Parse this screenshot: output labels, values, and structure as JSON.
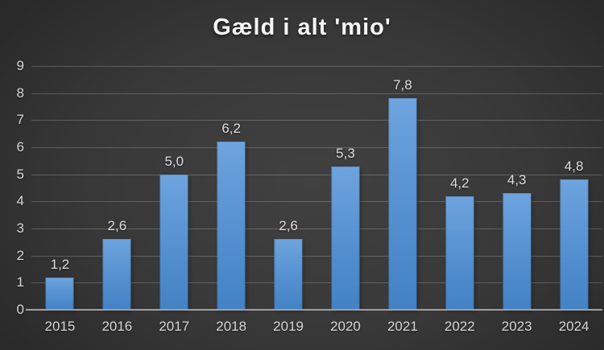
{
  "title": "Gæld i alt 'mio'",
  "chart_data": {
    "type": "bar",
    "title": "Gæld i alt 'mio'",
    "categories": [
      "2015",
      "2016",
      "2017",
      "2018",
      "2019",
      "2020",
      "2021",
      "2022",
      "2023",
      "2024"
    ],
    "values": [
      1.2,
      2.6,
      5.0,
      6.2,
      2.6,
      5.3,
      7.8,
      4.2,
      4.3,
      4.8
    ],
    "value_labels": [
      "1,2",
      "2,6",
      "5,0",
      "6,2",
      "2,6",
      "5,3",
      "7,8",
      "4,2",
      "4,3",
      "4,8"
    ],
    "xlabel": "",
    "ylabel": "",
    "ylim": [
      0,
      9
    ],
    "yticks": [
      0,
      1,
      2,
      3,
      4,
      5,
      6,
      7,
      8,
      9
    ],
    "grid": true,
    "legend": false,
    "colors": {
      "bar_top": "#6ea4de",
      "bar_bottom": "#4282c5",
      "background_center": "#414141",
      "background_edge": "#242424",
      "gridline": "rgba(255,255,255,0.20)",
      "axis_line": "#a0a0a0",
      "tick_text": "#d6d6d6",
      "label_text": "#dddddd",
      "title_text": "#f5f5f5"
    }
  }
}
